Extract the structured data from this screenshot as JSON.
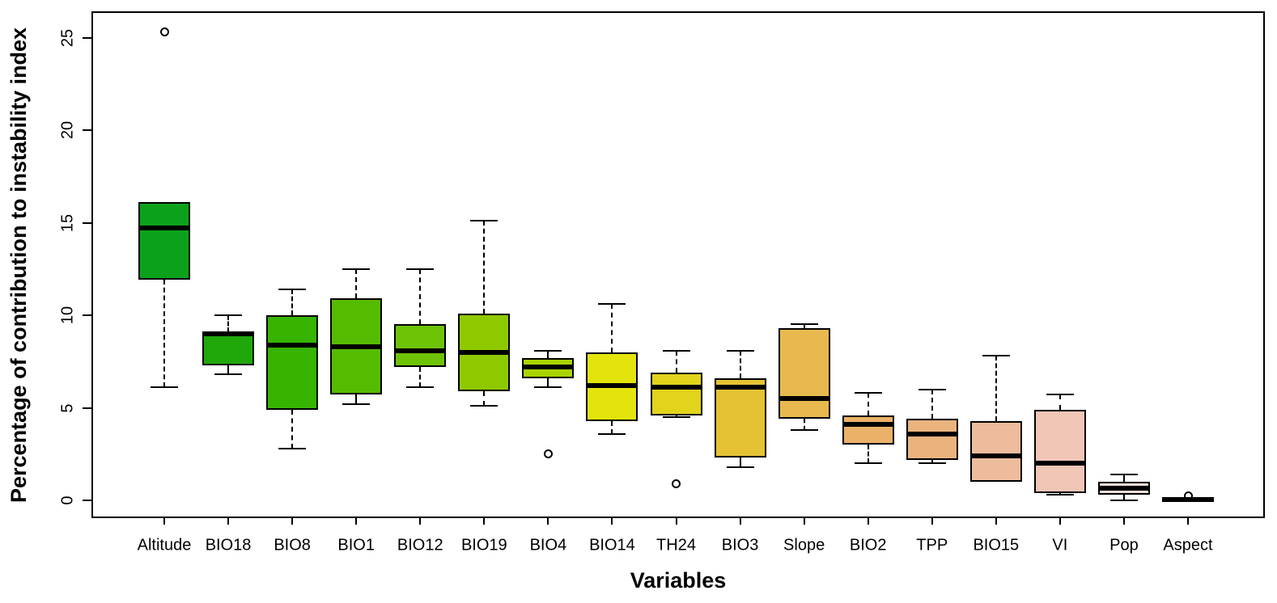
{
  "figure": {
    "ylabel": "Percentage of contribution to instability index",
    "xlabel": "Variables",
    "background_color": "#ffffff",
    "axis_color": "#000000"
  },
  "chart_data": {
    "type": "boxplot",
    "title": "",
    "xlabel": "Variables",
    "ylabel": "Percentage of contribution to instability index",
    "ylim": [
      -1,
      26.4
    ],
    "y_ticks": [
      0,
      5,
      10,
      15,
      20,
      25
    ],
    "grid": false,
    "legend": "none",
    "box_border_color": "#000000",
    "median_color": "#000000",
    "categories": [
      "Altitude",
      "BIO18",
      "BIO8",
      "BIO1",
      "BIO12",
      "BIO19",
      "BIO4",
      "BIO14",
      "TH24",
      "BIO3",
      "Slope",
      "BIO2",
      "TPP",
      "BIO15",
      "VI",
      "Pop",
      "Aspect"
    ],
    "boxes": [
      {
        "label": "Altitude",
        "color": "#0ca11b",
        "min": 6.1,
        "q1": 11.9,
        "median": 14.7,
        "q3": 16.1,
        "max": 16.1,
        "outliers": [
          25.3
        ]
      },
      {
        "label": "BIO18",
        "color": "#20a80a",
        "min": 6.8,
        "q1": 7.3,
        "median": 9.0,
        "q3": 9.1,
        "max": 10.0,
        "outliers": []
      },
      {
        "label": "BIO8",
        "color": "#36b400",
        "min": 2.8,
        "q1": 4.9,
        "median": 8.4,
        "q3": 10.0,
        "max": 11.4,
        "outliers": []
      },
      {
        "label": "BIO1",
        "color": "#55bb00",
        "min": 5.2,
        "q1": 5.7,
        "median": 8.3,
        "q3": 10.9,
        "max": 12.5,
        "outliers": []
      },
      {
        "label": "BIO12",
        "color": "#6ec307",
        "min": 6.1,
        "q1": 7.2,
        "median": 8.1,
        "q3": 9.5,
        "max": 12.5,
        "outliers": []
      },
      {
        "label": "BIO19",
        "color": "#8ec900",
        "min": 5.1,
        "q1": 5.9,
        "median": 8.0,
        "q3": 10.1,
        "max": 15.1,
        "outliers": []
      },
      {
        "label": "BIO4",
        "color": "#a9d400",
        "min": 6.1,
        "q1": 6.6,
        "median": 7.2,
        "q3": 7.7,
        "max": 8.1,
        "outliers": [
          2.5
        ]
      },
      {
        "label": "BIO14",
        "color": "#e3e40b",
        "min": 3.6,
        "q1": 4.3,
        "median": 6.2,
        "q3": 8.0,
        "max": 10.6,
        "outliers": []
      },
      {
        "label": "TH24",
        "color": "#e2d31c",
        "min": 4.5,
        "q1": 4.6,
        "median": 6.1,
        "q3": 6.9,
        "max": 8.1,
        "outliers": [
          0.9
        ]
      },
      {
        "label": "BIO3",
        "color": "#e4c233",
        "min": 1.8,
        "q1": 2.3,
        "median": 6.1,
        "q3": 6.6,
        "max": 8.1,
        "outliers": []
      },
      {
        "label": "Slope",
        "color": "#e8b94e",
        "min": 3.8,
        "q1": 4.4,
        "median": 5.5,
        "q3": 9.3,
        "max": 9.5,
        "outliers": []
      },
      {
        "label": "BIO2",
        "color": "#ebb169",
        "min": 2.0,
        "q1": 3.0,
        "median": 4.1,
        "q3": 4.6,
        "max": 5.8,
        "outliers": []
      },
      {
        "label": "TPP",
        "color": "#eab37e",
        "min": 2.0,
        "q1": 2.2,
        "median": 3.6,
        "q3": 4.4,
        "max": 6.0,
        "outliers": []
      },
      {
        "label": "BIO15",
        "color": "#ecbc9d",
        "min": 1.0,
        "q1": 1.0,
        "median": 2.4,
        "q3": 4.3,
        "max": 7.8,
        "outliers": []
      },
      {
        "label": "VI",
        "color": "#f0c6b7",
        "min": 0.3,
        "q1": 0.4,
        "median": 2.0,
        "q3": 4.9,
        "max": 5.7,
        "outliers": []
      },
      {
        "label": "Pop",
        "color": "#f2ddd9",
        "min": 0.0,
        "q1": 0.3,
        "median": 0.65,
        "q3": 1.0,
        "max": 1.4,
        "outliers": []
      },
      {
        "label": "Aspect",
        "color": "#f0e7e4",
        "min": 0.0,
        "q1": 0.0,
        "median": 0.05,
        "q3": 0.08,
        "max": 0.08,
        "outliers": [
          0.25
        ]
      }
    ]
  }
}
